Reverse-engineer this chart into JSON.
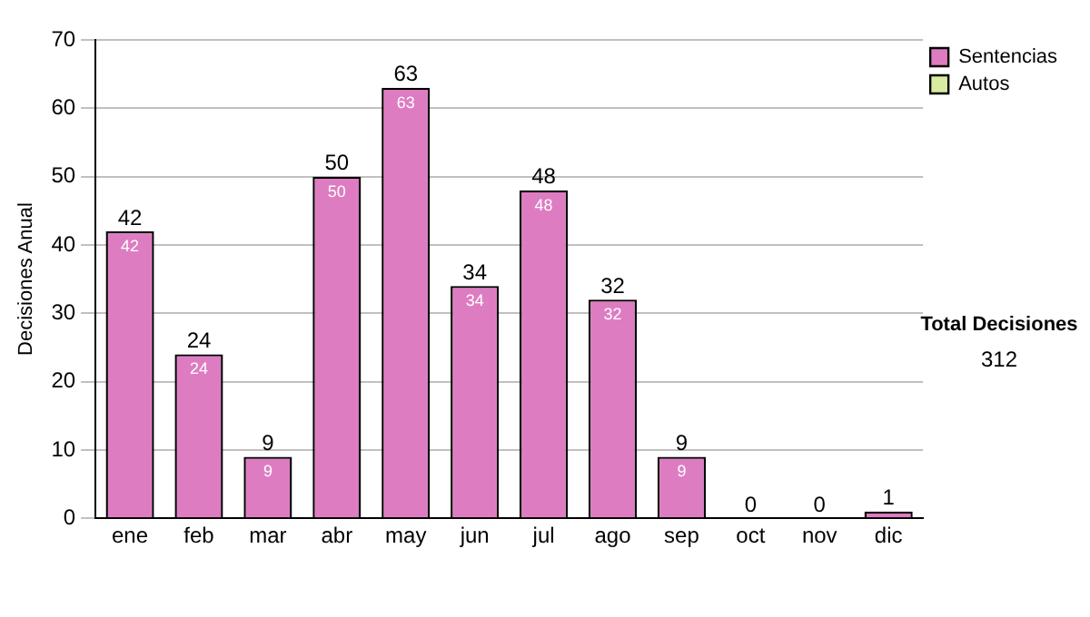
{
  "chart_data": {
    "type": "bar",
    "ylabel": "Decisiones Anual",
    "categories": [
      "ene",
      "feb",
      "mar",
      "abr",
      "may",
      "jun",
      "jul",
      "ago",
      "sep",
      "oct",
      "nov",
      "dic"
    ],
    "series": [
      {
        "name": "Sentencias",
        "color": "#de7cc2",
        "values": [
          42,
          24,
          9,
          50,
          63,
          34,
          48,
          32,
          9,
          0,
          0,
          1
        ],
        "value_labels": [
          "42",
          "24",
          "9",
          "50",
          "63",
          "34",
          "48",
          "32",
          "9",
          null,
          null,
          null
        ]
      },
      {
        "name": "Autos",
        "color": "#d8eba0",
        "values": [
          0,
          0,
          0,
          0,
          0,
          0,
          0,
          0,
          0,
          0,
          0,
          0
        ]
      }
    ],
    "stacked": true,
    "totals": [
      "42",
      "24",
      "9",
      "50",
      "63",
      "34",
      "48",
      "32",
      "9",
      "0",
      "0",
      "1"
    ],
    "ylim": [
      0,
      70
    ],
    "yticks": [
      0,
      10,
      20,
      30,
      40,
      50,
      60,
      70
    ],
    "grid": "y",
    "legend": "right",
    "annotations": [
      "Total Decisiones",
      "312"
    ]
  }
}
